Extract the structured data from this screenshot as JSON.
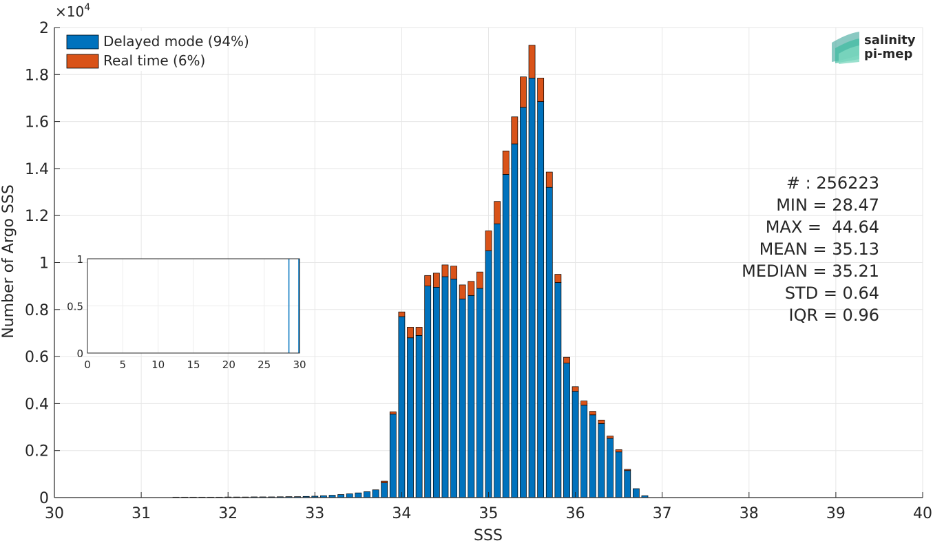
{
  "chart_data": [
    {
      "type": "bar",
      "stacked": true,
      "xlabel": "SSS",
      "ylabel": "Number of Argo SSS",
      "exponent_label": "×10",
      "exponent_power": "4",
      "xlim": [
        30,
        40
      ],
      "ylim": [
        0,
        20000
      ],
      "xticks": [
        30,
        31,
        32,
        33,
        34,
        35,
        36,
        37,
        38,
        39,
        40
      ],
      "yticks": [
        0,
        2000,
        4000,
        6000,
        8000,
        10000,
        12000,
        14000,
        16000,
        18000,
        20000
      ],
      "ytick_labels": [
        "0",
        "0.2",
        "0.4",
        "0.6",
        "0.8",
        "1",
        "1.2",
        "1.4",
        "1.6",
        "1.8",
        "2"
      ],
      "grid": true,
      "legend_position": "top-left",
      "x": [
        31.4,
        31.5,
        31.6,
        31.7,
        31.8,
        31.9,
        32.0,
        32.1,
        32.2,
        32.3,
        32.4,
        32.5,
        32.6,
        32.7,
        32.8,
        32.9,
        33.0,
        33.1,
        33.2,
        33.3,
        33.4,
        33.5,
        33.6,
        33.7,
        33.8,
        33.9,
        34.0,
        34.1,
        34.2,
        34.3,
        34.4,
        34.5,
        34.6,
        34.7,
        34.8,
        34.9,
        35.0,
        35.1,
        35.2,
        35.3,
        35.4,
        35.5,
        35.6,
        35.7,
        35.8,
        35.9,
        36.0,
        36.1,
        36.2,
        36.3,
        36.4,
        36.5,
        36.6,
        36.7,
        36.8
      ],
      "series": [
        {
          "name": "Delayed mode (94%)",
          "color": "#0072BD",
          "values": [
            20,
            20,
            20,
            20,
            20,
            20,
            25,
            25,
            25,
            30,
            30,
            30,
            35,
            40,
            40,
            50,
            60,
            80,
            100,
            130,
            160,
            200,
            250,
            330,
            630,
            3550,
            7700,
            6800,
            6900,
            9000,
            8950,
            9400,
            9300,
            8450,
            8600,
            8900,
            10500,
            11650,
            13750,
            15050,
            16600,
            17850,
            16850,
            13200,
            9150,
            5720,
            4520,
            3930,
            3520,
            3150,
            2520,
            1940,
            1150,
            380,
            80
          ]
        },
        {
          "name": "Real time (6%)",
          "color": "#D95319",
          "values": [
            0,
            0,
            0,
            0,
            0,
            0,
            0,
            0,
            0,
            0,
            0,
            0,
            0,
            0,
            0,
            0,
            0,
            0,
            0,
            0,
            0,
            0,
            0,
            0,
            70,
            100,
            200,
            450,
            350,
            450,
            600,
            500,
            550,
            600,
            600,
            700,
            850,
            950,
            1000,
            1150,
            1300,
            1400,
            1000,
            650,
            350,
            250,
            200,
            180,
            150,
            150,
            100,
            100,
            50,
            0,
            0
          ]
        }
      ],
      "stats": [
        "# : 256223",
        "MIN = 28.47",
        "MAX =  44.64",
        "MEAN = 35.13",
        "MEDIAN = 35.21",
        "STD = 0.64",
        "IQR = 0.96"
      ]
    },
    {
      "type": "bar",
      "inset": true,
      "xlim": [
        0,
        30
      ],
      "ylim": [
        0,
        1
      ],
      "xticks": [
        0,
        5,
        10,
        15,
        20,
        25,
        30
      ],
      "yticks": [
        0,
        0.5,
        1
      ],
      "grid": true,
      "x": [
        28.5,
        29.9
      ],
      "values": [
        1,
        1
      ]
    }
  ],
  "logo": {
    "line1": "salinity",
    "line2": "pi-mep",
    "color": "#3dbba0",
    "dark_color": "#1f6f73"
  }
}
